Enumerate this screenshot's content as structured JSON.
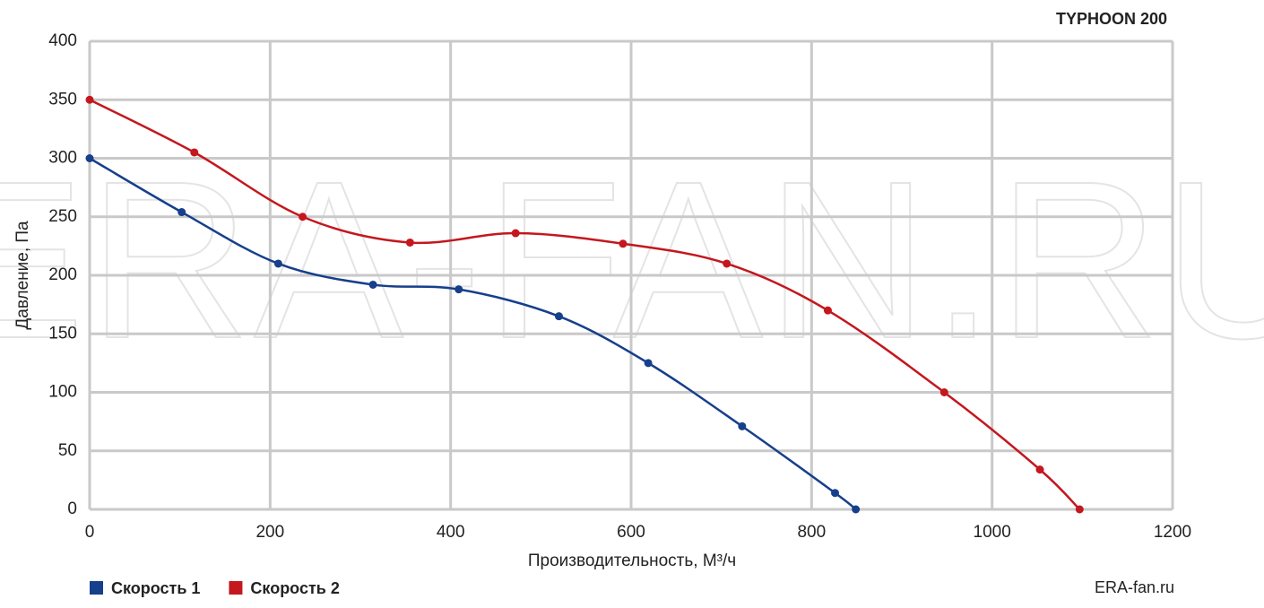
{
  "chart_data": {
    "type": "line",
    "title": "TYPHOON 200",
    "ylabel": "Давление, Па",
    "xlabel": "Производительность, М³/ч",
    "watermark": "ERA-FAN.RU",
    "footer": "ERA-fan.ru",
    "xlim": [
      0,
      1200
    ],
    "xticks": [
      0,
      200,
      400,
      600,
      800,
      1000,
      1200
    ],
    "ylim": [
      0,
      400
    ],
    "yticks": [
      0,
      50,
      100,
      150,
      200,
      250,
      300,
      350,
      400
    ],
    "grid": true,
    "legend": "bottom-left",
    "series": [
      {
        "name": "Скорость 1",
        "color": "#163f8c",
        "x": [
          0,
          102,
          209,
          314,
          409,
          520,
          619,
          723,
          826,
          849
        ],
        "values": [
          300,
          254,
          210,
          192,
          188,
          165,
          125,
          71,
          14,
          0
        ]
      },
      {
        "name": "Скорость 2",
        "color": "#c4171e",
        "x": [
          0,
          116,
          236,
          355,
          472,
          591,
          706,
          818,
          947,
          1053,
          1097
        ],
        "values": [
          350,
          305,
          250,
          228,
          236,
          227,
          210,
          170,
          100,
          34,
          0
        ]
      }
    ]
  }
}
